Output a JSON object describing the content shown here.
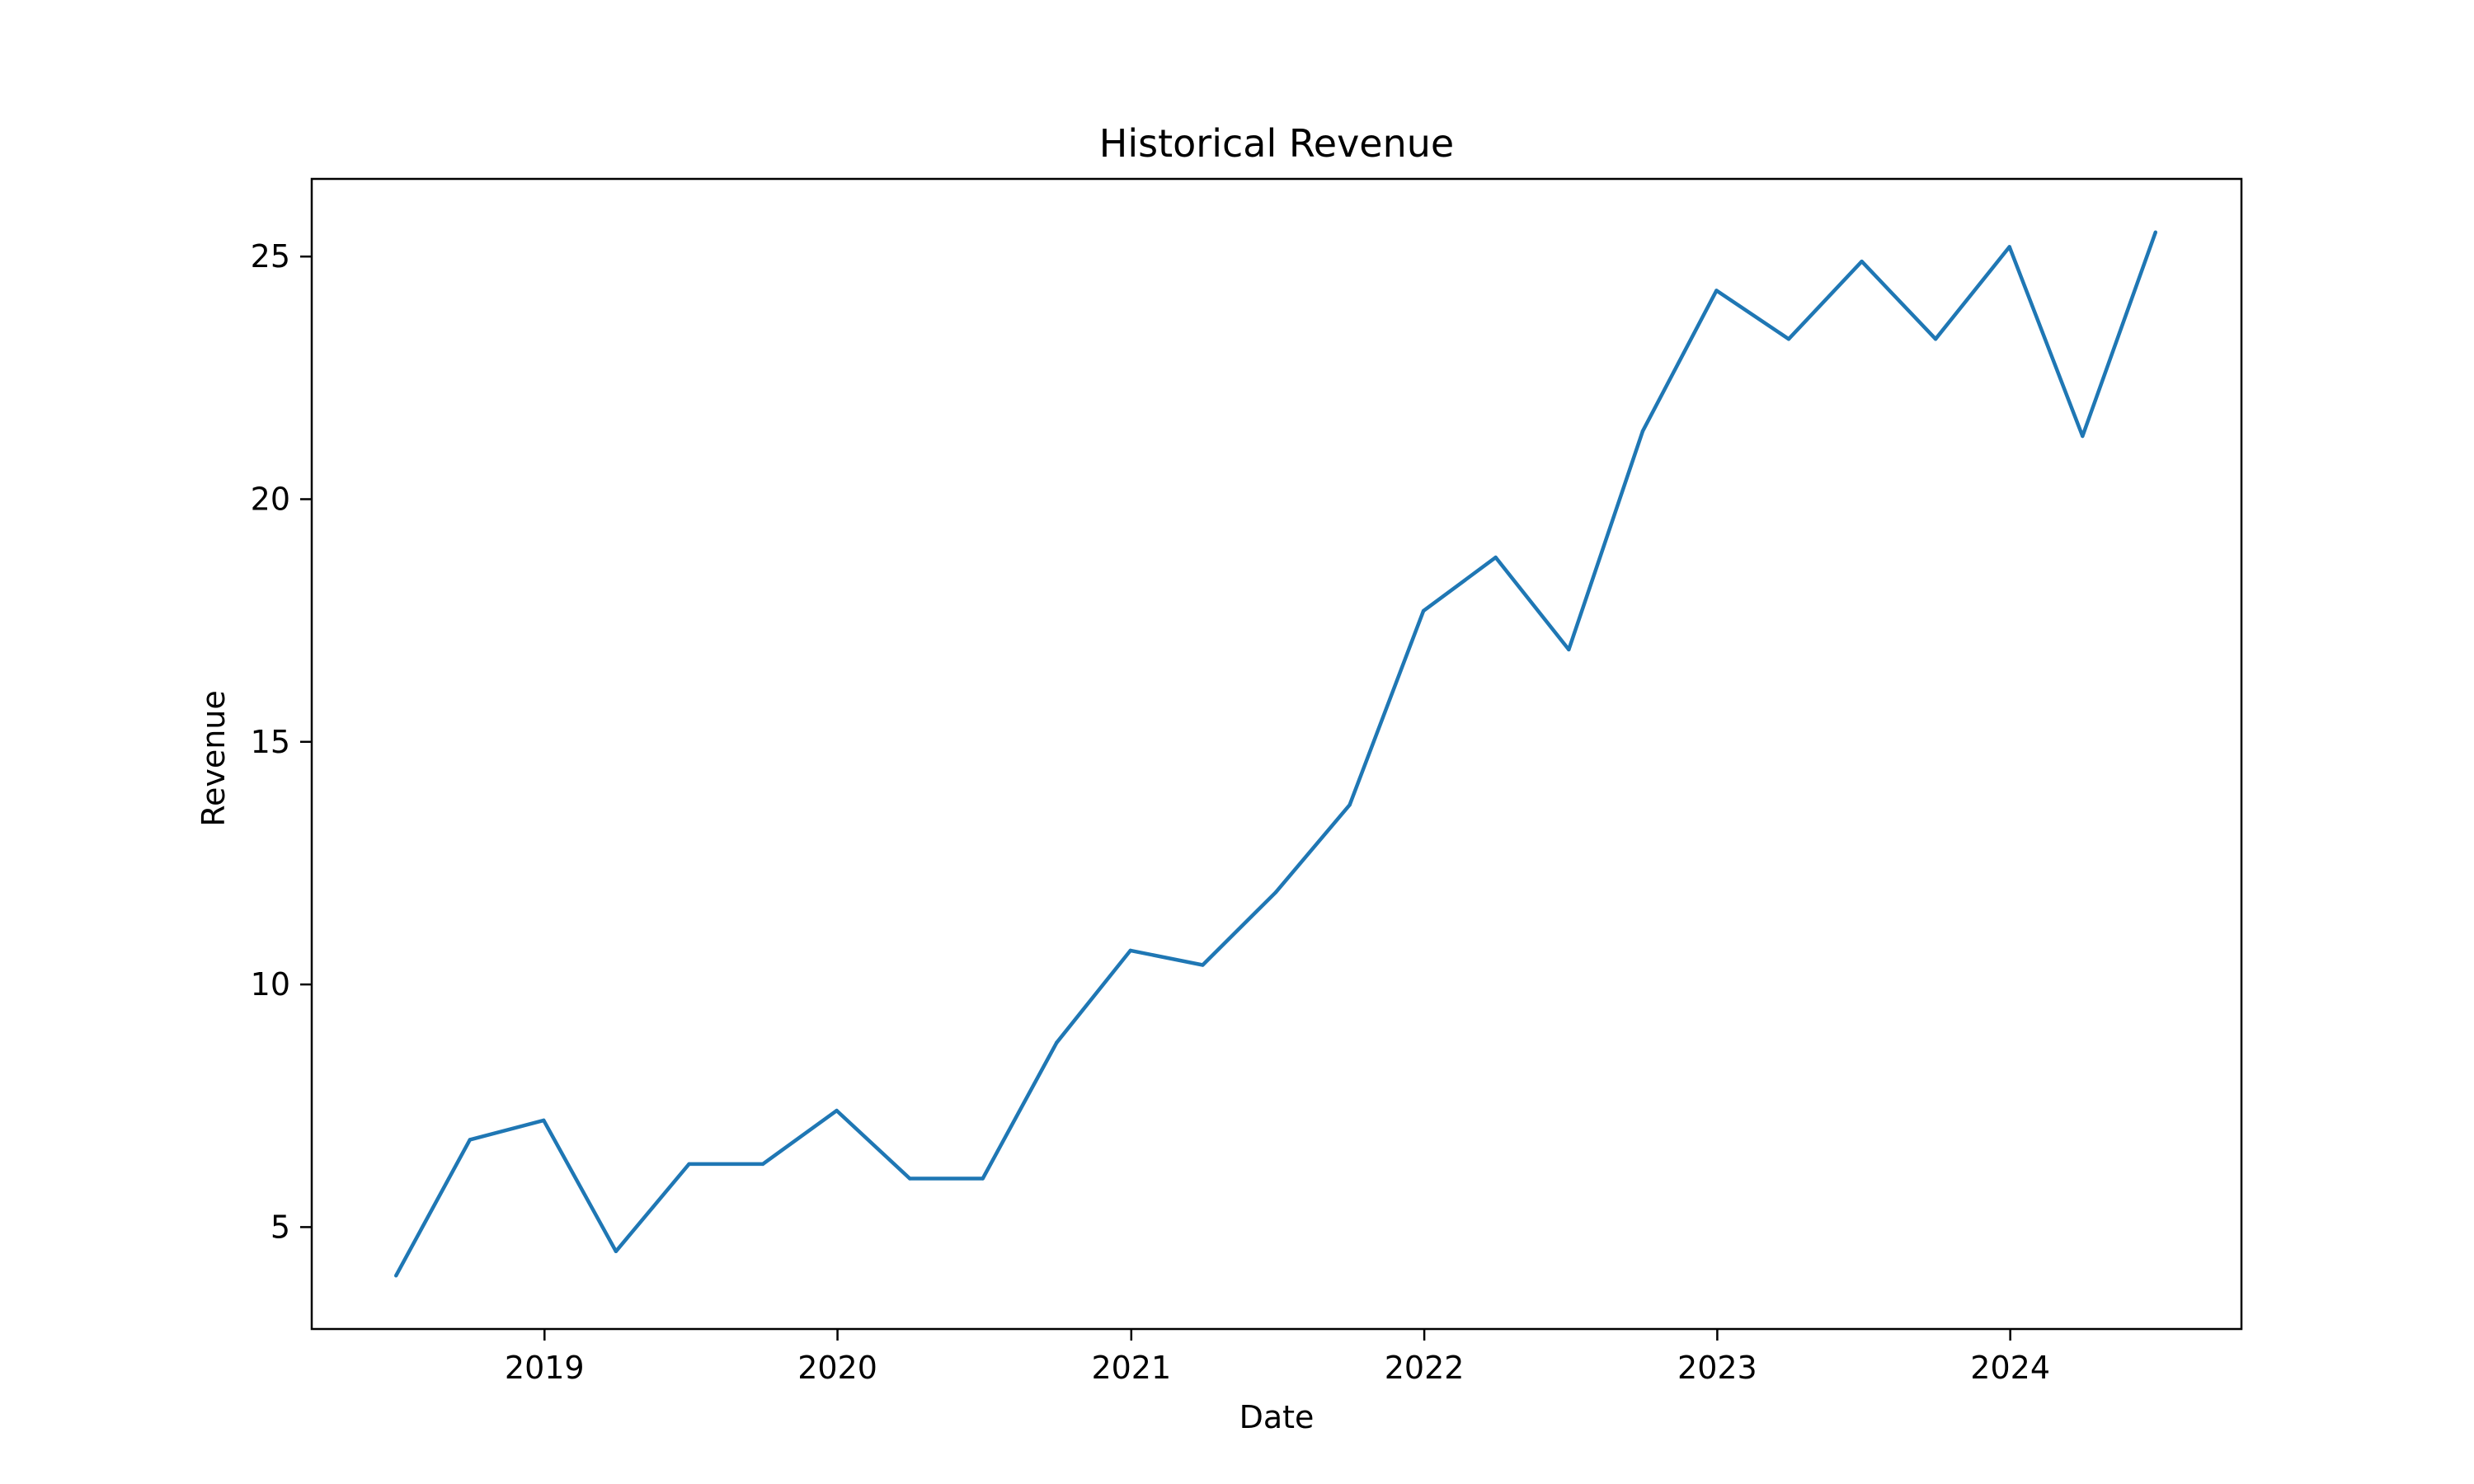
{
  "chart_data": {
    "type": "line",
    "title": "Historical Revenue",
    "xlabel": "Date",
    "ylabel": "Revenue",
    "x_axis": "date",
    "xlim": [
      "2018-03-17",
      "2024-10-15"
    ],
    "ylim": [
      2.9,
      26.6
    ],
    "x_ticks": [
      {
        "value": "2019-01-01",
        "label": "2019"
      },
      {
        "value": "2020-01-01",
        "label": "2020"
      },
      {
        "value": "2021-01-01",
        "label": "2021"
      },
      {
        "value": "2022-01-01",
        "label": "2022"
      },
      {
        "value": "2023-01-01",
        "label": "2023"
      },
      {
        "value": "2024-01-01",
        "label": "2024"
      }
    ],
    "y_ticks": [
      {
        "value": 5,
        "label": "5"
      },
      {
        "value": 10,
        "label": "10"
      },
      {
        "value": 15,
        "label": "15"
      },
      {
        "value": 20,
        "label": "20"
      },
      {
        "value": 25,
        "label": "25"
      }
    ],
    "grid": false,
    "legend": "none",
    "x": [
      "2018-06-30",
      "2018-09-30",
      "2018-12-31",
      "2019-03-31",
      "2019-06-30",
      "2019-09-30",
      "2019-12-31",
      "2020-03-31",
      "2020-06-30",
      "2020-09-30",
      "2020-12-31",
      "2021-03-31",
      "2021-06-30",
      "2021-09-30",
      "2021-12-31",
      "2022-03-31",
      "2022-06-30",
      "2022-09-30",
      "2022-12-31",
      "2023-03-31",
      "2023-06-30",
      "2023-09-30",
      "2023-12-31",
      "2024-03-31",
      "2024-06-30"
    ],
    "series": [
      {
        "color": "#1f77b4",
        "values": [
          4.0,
          6.8,
          7.2,
          4.5,
          6.3,
          6.3,
          7.4,
          6.0,
          6.0,
          8.8,
          10.7,
          10.4,
          11.9,
          13.7,
          17.7,
          18.8,
          16.9,
          21.4,
          24.3,
          23.3,
          24.9,
          23.3,
          25.2,
          21.3,
          25.5
        ]
      }
    ]
  }
}
